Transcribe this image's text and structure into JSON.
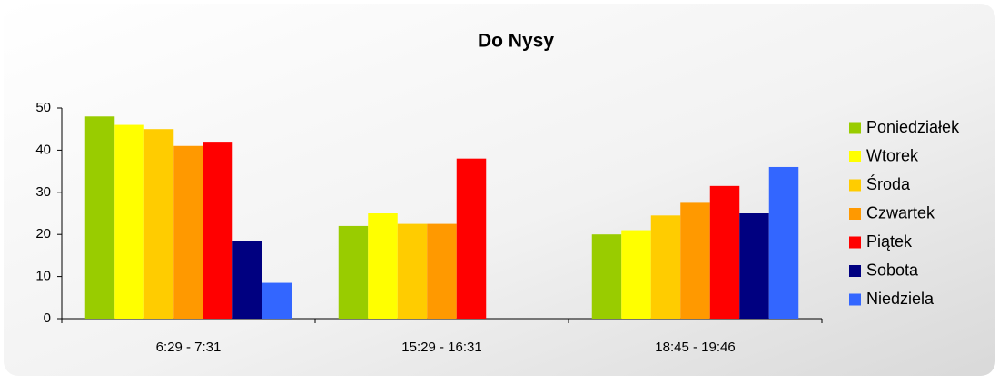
{
  "chart_data": {
    "type": "bar",
    "title": "Do Nysy",
    "categories": [
      "6:29 - 7:31",
      "15:29 - 16:31",
      "18:45 - 19:46"
    ],
    "series": [
      {
        "name": "Poniedziałek",
        "color": "#99cc00",
        "values": [
          48,
          22,
          20
        ]
      },
      {
        "name": "Wtorek",
        "color": "#ffff00",
        "values": [
          46,
          25,
          21
        ]
      },
      {
        "name": "Środa",
        "color": "#ffcc00",
        "values": [
          45,
          22.5,
          24.5
        ]
      },
      {
        "name": "Czwartek",
        "color": "#ff9900",
        "values": [
          41,
          22.5,
          27.5
        ]
      },
      {
        "name": "Piątek",
        "color": "#ff0000",
        "values": [
          42,
          38,
          31.5
        ]
      },
      {
        "name": "Sobota",
        "color": "#000080",
        "values": [
          18.5,
          null,
          25
        ]
      },
      {
        "name": "Niedziela",
        "color": "#3366ff",
        "values": [
          8.5,
          null,
          36
        ]
      }
    ],
    "ylim": [
      0,
      50
    ],
    "yticks": [
      0,
      10,
      20,
      30,
      40,
      50
    ],
    "grid": false,
    "legend": "right"
  }
}
